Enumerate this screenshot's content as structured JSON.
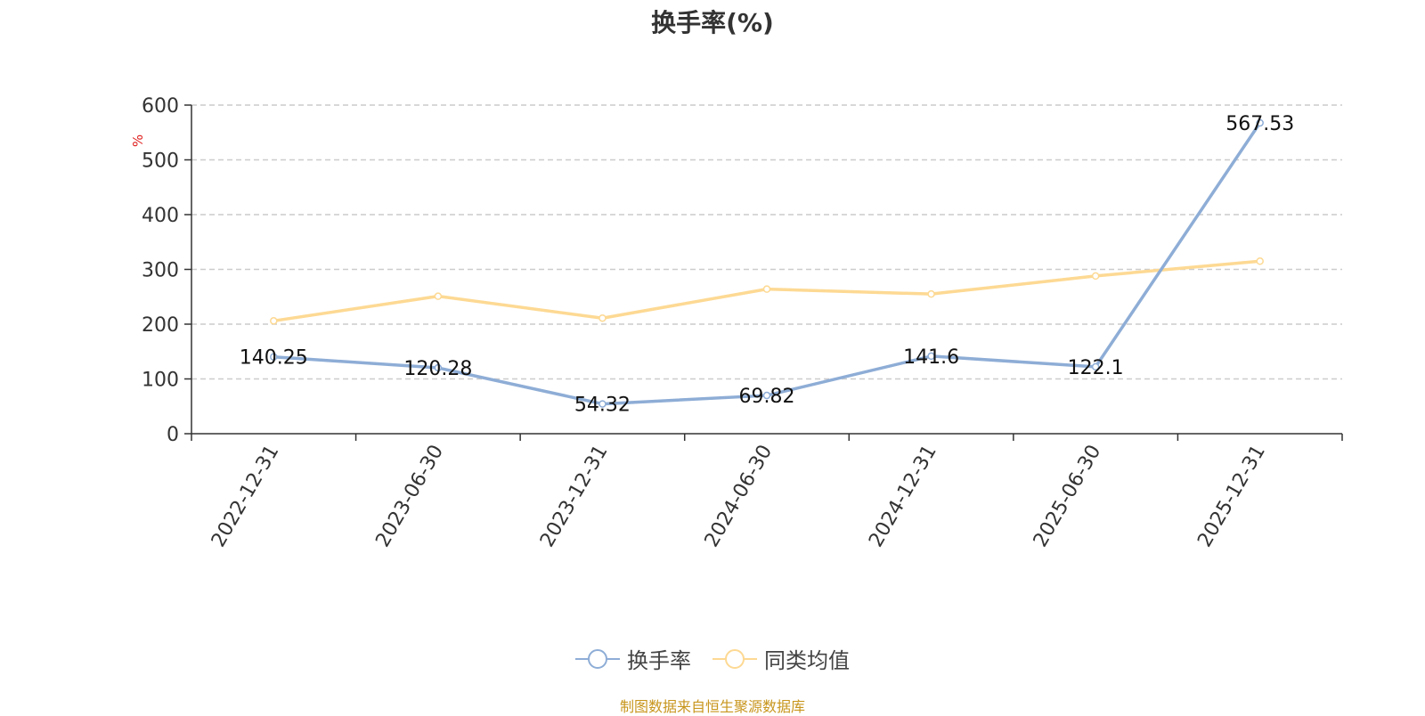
{
  "chart_data": {
    "type": "line",
    "title": "换手率(%)",
    "ylabel": "%",
    "xlabel": "",
    "ylim": [
      0,
      600
    ],
    "yticks": [
      0,
      100,
      200,
      300,
      400,
      500,
      600
    ],
    "categories": [
      "2022-12-31",
      "2023-06-30",
      "2023-12-31",
      "2024-06-30",
      "2024-12-31",
      "2025-06-30",
      "2025-12-31"
    ],
    "series": [
      {
        "name": "换手率",
        "color": "#8eadd6",
        "values": [
          140.25,
          120.28,
          54.32,
          69.82,
          141.6,
          122.1,
          567.53
        ],
        "data_labels": [
          "140.25",
          "120.28",
          "54.32",
          "69.82",
          "141.6",
          "122.1",
          "567.53"
        ]
      },
      {
        "name": "同类均值",
        "color": "#fdd993",
        "values": [
          206,
          251,
          211,
          264,
          255,
          288,
          315
        ]
      }
    ],
    "grid": true,
    "legend_position": "bottom-center"
  },
  "source": "制图数据来自恒生聚源数据库"
}
